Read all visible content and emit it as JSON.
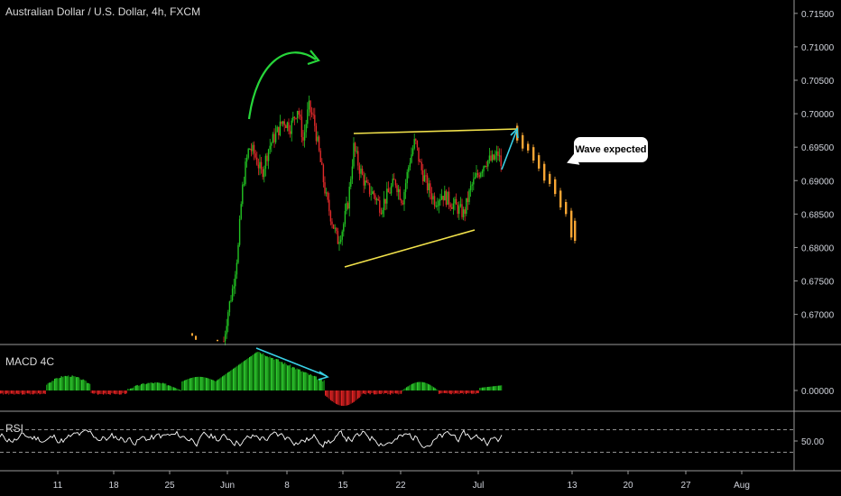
{
  "chart_data": [
    {
      "type": "candlestick",
      "title": "Australian Dollar / U.S. Dollar, 4h, FXCM",
      "y_ticks": [
        "0.71500",
        "0.71000",
        "0.70500",
        "0.70000",
        "0.69500",
        "0.69000",
        "0.68500",
        "0.68000",
        "0.67500",
        "0.67000"
      ],
      "ylim": [
        0.6655,
        0.717
      ],
      "x_ticks": [
        "11",
        "18",
        "25",
        "Jun",
        "8",
        "15",
        "22",
        "Jul",
        "13",
        "20",
        "27",
        "Aug"
      ],
      "annotation_text": "Wave expected",
      "colors": {
        "up": "#22c322",
        "down": "#e02a2a",
        "projection": "#f7a534",
        "triangle": "#f2e24b",
        "arrow_green": "#27d63a",
        "arrow_cyan": "#39d0e5"
      }
    },
    {
      "type": "bar",
      "name": "MACD 4C",
      "y_ticks": [
        "0.00000"
      ],
      "colors": {
        "pos_up": "#2ecc2e",
        "pos_down": "#138a13",
        "neg_down": "#e22323",
        "neg_up": "#8b1212"
      }
    },
    {
      "type": "line",
      "name": "RSI",
      "y_ticks": [
        "50.00"
      ],
      "levels": [
        70,
        30
      ],
      "color": "#ffffff"
    }
  ]
}
